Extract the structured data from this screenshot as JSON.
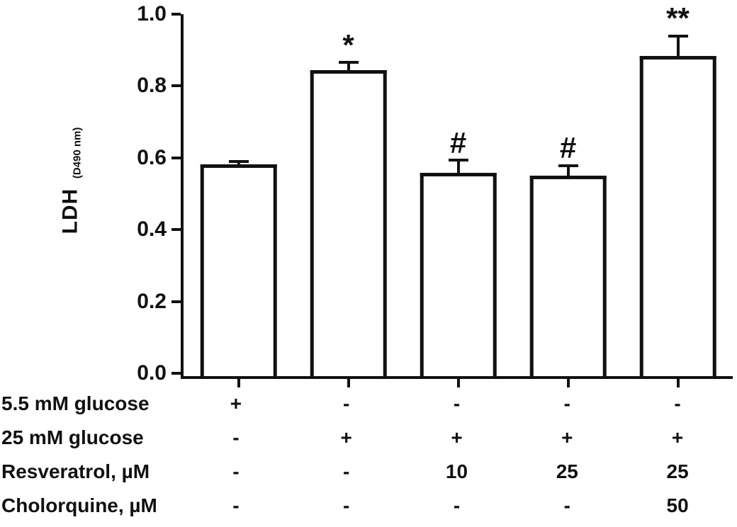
{
  "chart_data": {
    "type": "bar",
    "title": "",
    "ylabel_main": "LDH",
    "ylabel_sub": "(D490 nm)",
    "xlabel": "",
    "ylim": [
      0,
      1.0
    ],
    "yticks": [
      0.0,
      0.2,
      0.4,
      0.6,
      0.8,
      1.0
    ],
    "grid": false,
    "legend": "none",
    "bar_fill": "#ffffff",
    "bar_border": "#111111",
    "bars": [
      {
        "value": 0.585,
        "error": 0.012,
        "annotation": ""
      },
      {
        "value": 0.845,
        "error": 0.025,
        "annotation": "*"
      },
      {
        "value": 0.562,
        "error": 0.038,
        "annotation": "#"
      },
      {
        "value": 0.553,
        "error": 0.032,
        "annotation": "#"
      },
      {
        "value": 0.885,
        "error": 0.058,
        "annotation": "**"
      }
    ],
    "condition_rows": [
      {
        "label": "5.5 mM glucose",
        "values": [
          "+",
          "-",
          "-",
          "-",
          "-"
        ]
      },
      {
        "label": "25 mM glucose",
        "values": [
          "-",
          "+",
          "+",
          "+",
          "+"
        ]
      },
      {
        "label": "Resveratrol, µM",
        "values": [
          "-",
          "-",
          "10",
          "25",
          "25"
        ]
      },
      {
        "label": "Cholorquine, µM",
        "values": [
          "-",
          "-",
          "-",
          "-",
          "50"
        ]
      }
    ]
  }
}
